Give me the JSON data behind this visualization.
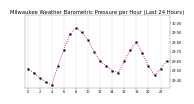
{
  "title": "Milwaukee Weather Barometric Pressure per Hour (Last 24 Hours)",
  "bg_color": "#ffffff",
  "line_color": "#dd0000",
  "marker_color": "#000000",
  "grid_color": "#bbbbbb",
  "hours": [
    0,
    1,
    2,
    3,
    4,
    5,
    6,
    7,
    8,
    9,
    10,
    11,
    12,
    13,
    14,
    15,
    16,
    17,
    18,
    19,
    20,
    21,
    22,
    23
  ],
  "pressure": [
    29.52,
    29.48,
    29.42,
    29.38,
    29.35,
    29.55,
    29.72,
    29.88,
    29.95,
    29.9,
    29.82,
    29.7,
    29.6,
    29.55,
    29.5,
    29.48,
    29.6,
    29.72,
    29.8,
    29.68,
    29.55,
    29.45,
    29.52,
    29.6
  ],
  "ylim_min": 29.32,
  "ylim_max": 30.08,
  "ytick_values": [
    29.4,
    29.5,
    29.6,
    29.7,
    29.8,
    29.9,
    30.0
  ],
  "ytick_labels": [
    "29.40",
    "29.50",
    "29.60",
    "29.70",
    "29.80",
    "29.90",
    "30.00"
  ],
  "xtick_values": [
    0,
    2,
    4,
    6,
    8,
    10,
    12,
    14,
    16,
    18,
    20,
    22
  ],
  "xtick_labels": [
    "0",
    "2",
    "4",
    "6",
    "8",
    "10",
    "12",
    "14",
    "16",
    "18",
    "20",
    "22"
  ],
  "title_fontsize": 3.8,
  "tick_fontsize": 2.5,
  "linewidth": 0.6,
  "markersize": 1.2,
  "vgrid_positions": [
    0,
    2,
    4,
    6,
    8,
    10,
    12,
    14,
    16,
    18,
    20,
    22
  ]
}
